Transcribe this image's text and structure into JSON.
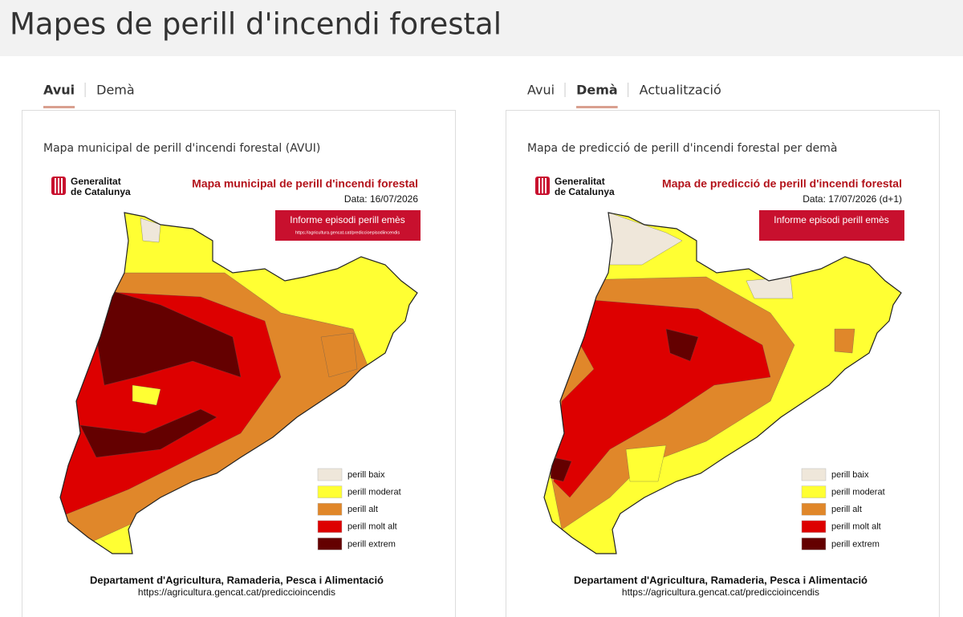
{
  "header": {
    "title": "Mapes de perill d'incendi forestal"
  },
  "panels": [
    {
      "tabs": [
        "Avui",
        "Demà"
      ],
      "active_tab": 0,
      "caption": "Mapa municipal de perill d'incendi forestal (AVUI)",
      "map": {
        "org": [
          "Generalitat",
          "de Catalunya"
        ],
        "title": "Mapa municipal de perill d'incendi forestal",
        "date": "Data: 16/07/2026",
        "banner": "Informe episodi perill emès",
        "banner_url": "https://agricultura.gencat.cat/prediccioepisodiincendis",
        "footer": "Departament d'Agricultura, Ramaderia, Pesca i Alimentació",
        "footer_url": "https://agricultura.gencat.cat/prediccioincendis"
      }
    },
    {
      "tabs": [
        "Avui",
        "Demà",
        "Actualització"
      ],
      "active_tab": 1,
      "caption": "Mapa de predicció de perill d'incendi forestal per demà",
      "map": {
        "org": [
          "Generalitat",
          "de Catalunya"
        ],
        "title": "Mapa de predicció de perill d'incendi forestal",
        "date": "Data: 17/07/2026 (d+1)",
        "banner": "Informe episodi perill emès",
        "footer": "Departament d'Agricultura, Ramaderia, Pesca i Alimentació",
        "footer_url": "https://agricultura.gencat.cat/prediccioincendis"
      }
    }
  ],
  "legend": [
    {
      "label": "perill baix",
      "color": "#efe7da"
    },
    {
      "label": "perill moderat",
      "color": "#ffff33"
    },
    {
      "label": "perill alt",
      "color": "#e0872a"
    },
    {
      "label": "perill molt alt",
      "color": "#dd0000"
    },
    {
      "label": "perill extrem",
      "color": "#640000"
    }
  ]
}
